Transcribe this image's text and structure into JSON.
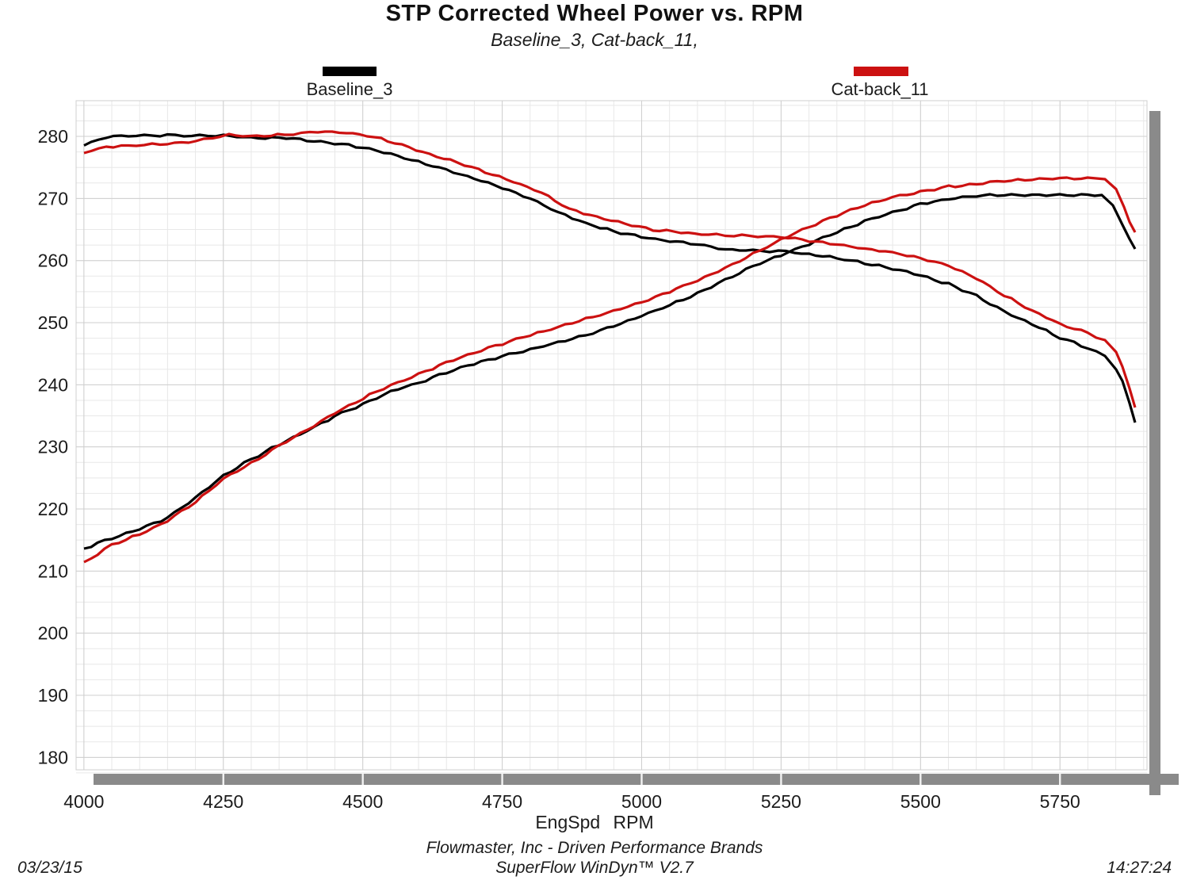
{
  "header": {
    "title": "STP Corrected Wheel Power vs. RPM",
    "subtitle": "Baseline_3, Cat-back_11,"
  },
  "legend": {
    "entries": [
      {
        "label": "Baseline_3",
        "color": "#000000"
      },
      {
        "label": "Cat-back_11",
        "color": "#cc1111"
      }
    ]
  },
  "footer": {
    "company_line": "Flowmaster, Inc - Driven Performance Brands",
    "software_line": "SuperFlow WinDyn™ V2.7",
    "date": "03/23/15",
    "time": "14:27:24"
  },
  "chart_data": {
    "type": "line",
    "title": "STP Corrected Wheel Power vs. RPM",
    "subtitle": "Baseline_3, Cat-back_11,",
    "xlabel": "EngSpd RPM",
    "ylabel": "",
    "xlim": [
      3986,
      5906
    ],
    "ylim": [
      178.0,
      285.75
    ],
    "x_ticks": [
      4000,
      4250,
      4500,
      4750,
      5000,
      5250,
      5500,
      5750
    ],
    "y_ticks": [
      180,
      190,
      200,
      210,
      220,
      230,
      240,
      250,
      260,
      270,
      280
    ],
    "x_minor_step": 50,
    "y_minor_step": 2.5,
    "grid": "on",
    "legend_position": "top",
    "colors": {
      "grid_minor": "#e8e8e8",
      "grid_major": "#cfcfcf",
      "axis_shadow": "#8a8a8a",
      "tick_text": "#1c1c1c"
    },
    "series": [
      {
        "name": "Baseline_3 power",
        "color": "#000000",
        "points": [
          [
            4000,
            213.6
          ],
          [
            4050,
            215.3
          ],
          [
            4100,
            216.8
          ],
          [
            4150,
            218.6
          ],
          [
            4200,
            221.8
          ],
          [
            4250,
            225.4
          ],
          [
            4300,
            228.0
          ],
          [
            4350,
            230.4
          ],
          [
            4400,
            232.6
          ],
          [
            4450,
            234.9
          ],
          [
            4500,
            236.9
          ],
          [
            4550,
            238.9
          ],
          [
            4600,
            240.3
          ],
          [
            4650,
            242.0
          ],
          [
            4700,
            243.4
          ],
          [
            4750,
            244.6
          ],
          [
            4800,
            245.7
          ],
          [
            4850,
            246.8
          ],
          [
            4900,
            248.0
          ],
          [
            4950,
            249.5
          ],
          [
            5000,
            251.1
          ],
          [
            5050,
            252.8
          ],
          [
            5100,
            254.7
          ],
          [
            5150,
            256.9
          ],
          [
            5200,
            259.1
          ],
          [
            5250,
            260.9
          ],
          [
            5300,
            262.7
          ],
          [
            5350,
            264.6
          ],
          [
            5400,
            266.3
          ],
          [
            5450,
            267.8
          ],
          [
            5500,
            269.1
          ],
          [
            5550,
            269.9
          ],
          [
            5600,
            270.4
          ],
          [
            5650,
            270.6
          ],
          [
            5700,
            270.6
          ],
          [
            5750,
            270.6
          ],
          [
            5800,
            270.6
          ],
          [
            5825,
            270.5
          ],
          [
            5845,
            268.8
          ],
          [
            5862,
            265.8
          ],
          [
            5875,
            263.5
          ],
          [
            5885,
            261.9
          ]
        ]
      },
      {
        "name": "Baseline_3 torque trace",
        "color": "#000000",
        "points": [
          [
            4000,
            278.6
          ],
          [
            4040,
            279.9
          ],
          [
            4080,
            280.1
          ],
          [
            4150,
            280.2
          ],
          [
            4250,
            280.1
          ],
          [
            4300,
            279.8
          ],
          [
            4350,
            279.8
          ],
          [
            4400,
            279.4
          ],
          [
            4450,
            278.9
          ],
          [
            4500,
            278.2
          ],
          [
            4550,
            277.2
          ],
          [
            4600,
            275.9
          ],
          [
            4650,
            274.6
          ],
          [
            4700,
            273.2
          ],
          [
            4750,
            271.7
          ],
          [
            4800,
            270.0
          ],
          [
            4850,
            267.8
          ],
          [
            4900,
            266.0
          ],
          [
            4950,
            264.7
          ],
          [
            5000,
            263.8
          ],
          [
            5050,
            263.1
          ],
          [
            5100,
            262.6
          ],
          [
            5150,
            261.8
          ],
          [
            5200,
            261.6
          ],
          [
            5260,
            261.5
          ],
          [
            5300,
            261.0
          ],
          [
            5350,
            260.4
          ],
          [
            5400,
            259.6
          ],
          [
            5450,
            258.7
          ],
          [
            5500,
            257.6
          ],
          [
            5550,
            256.2
          ],
          [
            5600,
            254.4
          ],
          [
            5650,
            251.8
          ],
          [
            5700,
            249.8
          ],
          [
            5750,
            247.6
          ],
          [
            5800,
            245.9
          ],
          [
            5830,
            244.6
          ],
          [
            5850,
            242.6
          ],
          [
            5862,
            240.5
          ],
          [
            5875,
            237.0
          ],
          [
            5885,
            233.9
          ]
        ]
      },
      {
        "name": "Cat-back_11 power",
        "color": "#cc1111",
        "points": [
          [
            4000,
            211.3
          ],
          [
            4050,
            214.2
          ],
          [
            4100,
            215.9
          ],
          [
            4150,
            218.1
          ],
          [
            4200,
            221.2
          ],
          [
            4250,
            224.8
          ],
          [
            4300,
            227.4
          ],
          [
            4350,
            230.2
          ],
          [
            4400,
            232.8
          ],
          [
            4450,
            235.4
          ],
          [
            4500,
            237.8
          ],
          [
            4550,
            239.9
          ],
          [
            4600,
            241.7
          ],
          [
            4650,
            243.6
          ],
          [
            4700,
            245.2
          ],
          [
            4750,
            246.6
          ],
          [
            4800,
            248.0
          ],
          [
            4850,
            249.3
          ],
          [
            4900,
            250.6
          ],
          [
            4950,
            251.9
          ],
          [
            5000,
            253.3
          ],
          [
            5050,
            255.0
          ],
          [
            5100,
            256.8
          ],
          [
            5150,
            258.8
          ],
          [
            5200,
            261.1
          ],
          [
            5250,
            263.4
          ],
          [
            5300,
            265.4
          ],
          [
            5350,
            267.3
          ],
          [
            5400,
            268.9
          ],
          [
            5450,
            270.2
          ],
          [
            5500,
            271.1
          ],
          [
            5550,
            271.9
          ],
          [
            5600,
            272.4
          ],
          [
            5650,
            272.8
          ],
          [
            5700,
            273.1
          ],
          [
            5750,
            273.2
          ],
          [
            5800,
            273.3
          ],
          [
            5830,
            273.2
          ],
          [
            5850,
            271.5
          ],
          [
            5865,
            268.5
          ],
          [
            5875,
            266.3
          ],
          [
            5885,
            264.6
          ]
        ]
      },
      {
        "name": "Cat-back_11 torque trace",
        "color": "#cc1111",
        "points": [
          [
            4000,
            277.4
          ],
          [
            4040,
            278.3
          ],
          [
            4080,
            278.5
          ],
          [
            4150,
            278.8
          ],
          [
            4200,
            279.2
          ],
          [
            4260,
            280.2
          ],
          [
            4310,
            280.0
          ],
          [
            4360,
            280.3
          ],
          [
            4420,
            280.8
          ],
          [
            4470,
            280.6
          ],
          [
            4520,
            279.9
          ],
          [
            4570,
            278.6
          ],
          [
            4620,
            277.1
          ],
          [
            4670,
            275.8
          ],
          [
            4720,
            274.3
          ],
          [
            4770,
            272.7
          ],
          [
            4820,
            271.0
          ],
          [
            4870,
            268.3
          ],
          [
            4920,
            267.0
          ],
          [
            4970,
            265.9
          ],
          [
            5020,
            265.0
          ],
          [
            5070,
            264.5
          ],
          [
            5120,
            264.2
          ],
          [
            5180,
            264.0
          ],
          [
            5250,
            263.8
          ],
          [
            5300,
            263.2
          ],
          [
            5350,
            262.6
          ],
          [
            5400,
            261.9
          ],
          [
            5450,
            261.3
          ],
          [
            5500,
            260.4
          ],
          [
            5550,
            259.2
          ],
          [
            5600,
            257.2
          ],
          [
            5650,
            254.4
          ],
          [
            5700,
            251.9
          ],
          [
            5750,
            249.8
          ],
          [
            5800,
            248.3
          ],
          [
            5830,
            247.2
          ],
          [
            5850,
            245.2
          ],
          [
            5862,
            243.0
          ],
          [
            5875,
            239.5
          ],
          [
            5885,
            236.4
          ]
        ]
      }
    ]
  }
}
